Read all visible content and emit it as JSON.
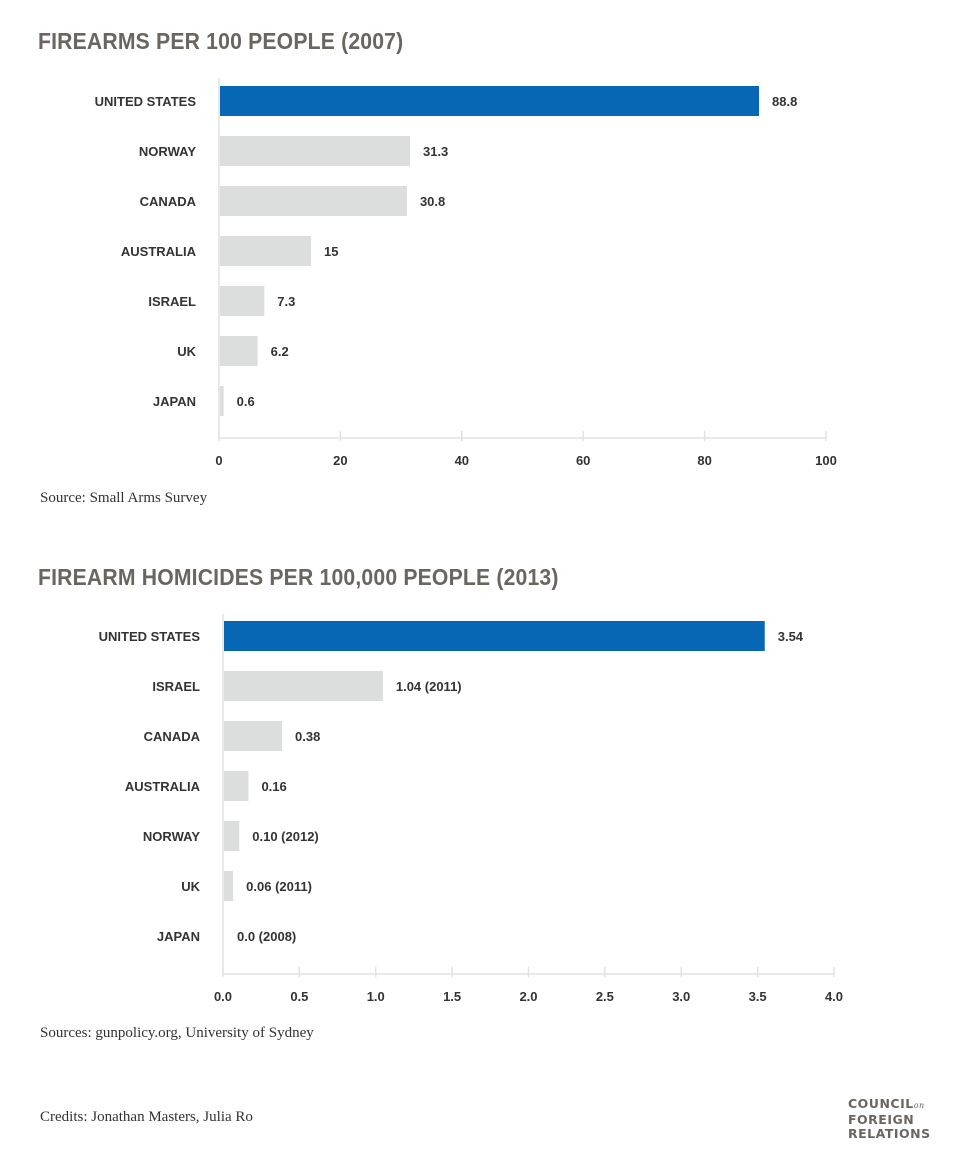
{
  "chart_data": [
    {
      "type": "bar",
      "orientation": "horizontal",
      "title": "FIREARMS PER 100 PEOPLE (2007)",
      "categories": [
        "UNITED STATES",
        "NORWAY",
        "CANADA",
        "AUSTRALIA",
        "ISRAEL",
        "UK",
        "JAPAN"
      ],
      "values": [
        88.8,
        31.3,
        30.8,
        15,
        7.3,
        6.2,
        0.6
      ],
      "value_labels": [
        "88.8",
        "31.3",
        "30.8",
        "15",
        "7.3",
        "6.2",
        "0.6"
      ],
      "highlight_index": 0,
      "xlim": [
        0,
        100
      ],
      "xticks": [
        0,
        20,
        40,
        60,
        80,
        100
      ],
      "xtick_labels": [
        "0",
        "20",
        "40",
        "60",
        "80",
        "100"
      ],
      "xlabel": "",
      "ylabel": "",
      "source": "Source: Small Arms Survey"
    },
    {
      "type": "bar",
      "orientation": "horizontal",
      "title": "FIREARM HOMICIDES PER 100,000 PEOPLE (2013)",
      "categories": [
        "UNITED STATES",
        "ISRAEL",
        "CANADA",
        "AUSTRALIA",
        "NORWAY",
        "UK",
        "JAPAN"
      ],
      "values": [
        3.54,
        1.04,
        0.38,
        0.16,
        0.1,
        0.06,
        0.0
      ],
      "value_labels": [
        "3.54",
        "1.04 (2011)",
        "0.38",
        "0.16",
        "0.10 (2012)",
        "0.06 (2011)",
        "0.0 (2008)"
      ],
      "highlight_index": 0,
      "xlim": [
        0,
        4.0
      ],
      "xticks": [
        0,
        0.5,
        1.0,
        1.5,
        2.0,
        2.5,
        3.0,
        3.5,
        4.0
      ],
      "xtick_labels": [
        "0.0",
        "0.5",
        "1.0",
        "1.5",
        "2.0",
        "2.5",
        "3.0",
        "3.5",
        "4.0"
      ],
      "xlabel": "",
      "ylabel": "",
      "source": "Sources: gunpolicy.org, University of Sydney"
    }
  ],
  "credits": "Credits: Jonathan Masters, Julia Ro",
  "logo": {
    "line1": "COUNCIL",
    "on": "on",
    "line2": "FOREIGN",
    "line3": "RELATIONS"
  },
  "colors": {
    "highlight": "#0767b5",
    "bar": "#dcdedd",
    "axis": "#e2e2e2",
    "title": "#6b6560"
  }
}
